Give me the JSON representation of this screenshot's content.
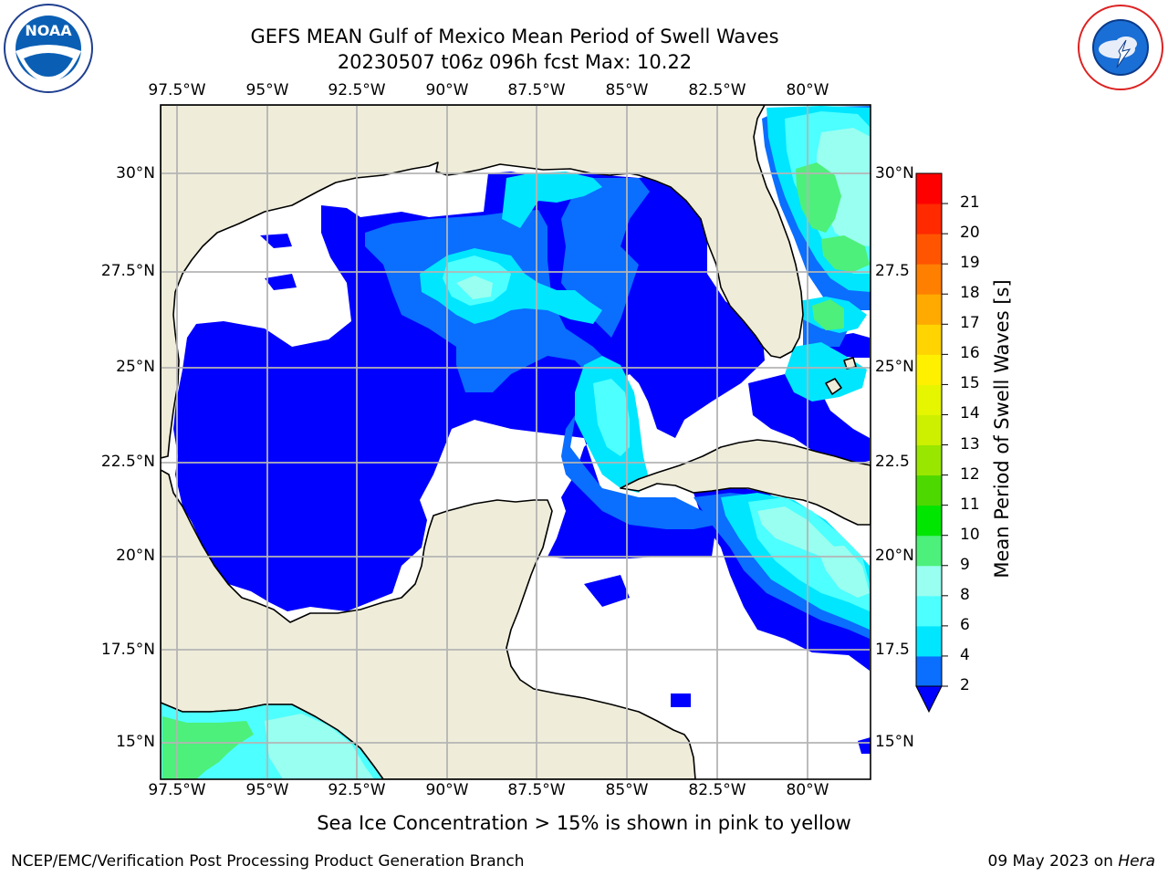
{
  "title": {
    "line1": "GEFS MEAN Gulf of Mexico Mean Period of Swell Waves",
    "line2": "20230507 t06z 096h fcst   Max: 10.22"
  },
  "logos": {
    "left": "NOAA",
    "left_ring": "NATIONAL OCEANIC AND ATMOSPHERIC ADMINISTRATION · U.S. DEPARTMENT OF COMMERCE",
    "right_ring": "NATIONAL WEATHER SERVICE"
  },
  "map": {
    "lon_labels": [
      "97.5°W",
      "95°W",
      "92.5°W",
      "90°W",
      "87.5°W",
      "85°W",
      "82.5°W",
      "80°W"
    ],
    "lat_labels_left": [
      "30°N",
      "27.5°N",
      "25°N",
      "22.5°N",
      "20°N",
      "17.5°N",
      "15°N"
    ],
    "lat_labels_right": [
      "30°N",
      "27.5",
      "25°N",
      "22.5",
      "20°N",
      "17.5",
      "15°N"
    ],
    "land_color": "#efedda",
    "ocean_no_data_color": "#ffffff",
    "grid": true
  },
  "colorbar": {
    "label": "Mean Period of Swell Waves [s]",
    "ticks": [
      "2",
      "4",
      "6",
      "8",
      "9",
      "10",
      "11",
      "12",
      "13",
      "14",
      "15",
      "16",
      "17",
      "18",
      "19",
      "20",
      "21"
    ],
    "colors": [
      "#0a6eff",
      "#00e6ff",
      "#4dffff",
      "#99fff0",
      "#4df07a",
      "#00e600",
      "#4dd900",
      "#99e600",
      "#ccf000",
      "#e6f500",
      "#fff000",
      "#ffd400",
      "#ffaa00",
      "#ff8000",
      "#ff5500",
      "#ff2a00",
      "#ff0000"
    ],
    "extend_color": "#0000ff"
  },
  "subtitle": "Sea Ice Concentration > 15% is shown in pink to yellow",
  "footer": {
    "left": "NCEP/EMC/Verification Post Processing Product Generation Branch",
    "date": "09 May 2023 on ",
    "machine": "Hera"
  }
}
